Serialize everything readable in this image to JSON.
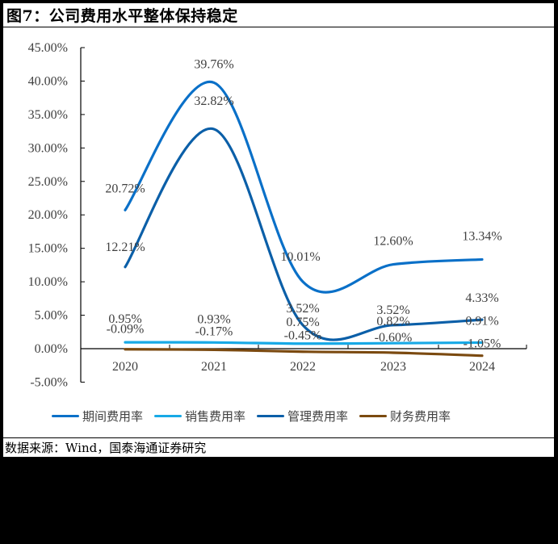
{
  "figure": {
    "title": "图7：公司费用水平整体保持稳定",
    "source": "数据来源：Wind，国泰海通证券研究"
  },
  "legend": [
    {
      "label": "期间费用率",
      "color": "#0A70C8"
    },
    {
      "label": "销售费用率",
      "color": "#17A9E6"
    },
    {
      "label": "管理费用率",
      "color": "#0B5FA8"
    },
    {
      "label": "财务费用率",
      "color": "#7B4A10"
    }
  ],
  "chart_data": {
    "type": "line",
    "title": "公司费用水平整体保持稳定",
    "xlabel": "",
    "ylabel": "",
    "categories": [
      "2020",
      "2021",
      "2022",
      "2023",
      "2024"
    ],
    "y_ticks": [
      "45.00%",
      "40.00%",
      "35.00%",
      "30.00%",
      "25.00%",
      "20.00%",
      "15.00%",
      "10.00%",
      "5.00%",
      "0.00%",
      "-5.00%"
    ],
    "ylim": [
      -5,
      45
    ],
    "grid": false,
    "smooth": true,
    "legend_position": "bottom",
    "series": [
      {
        "name": "期间费用率",
        "color": "#0A70C8",
        "values": [
          20.72,
          39.76,
          10.01,
          12.6,
          13.34
        ],
        "labels": [
          "20.72%",
          "39.76%",
          "10.01%",
          "12.60%",
          "13.34%"
        ]
      },
      {
        "name": "销售费用率",
        "color": "#17A9E6",
        "values": [
          0.95,
          0.93,
          0.75,
          0.82,
          0.91
        ],
        "labels": [
          "0.95%",
          "0.93%",
          "0.75%",
          "0.82%",
          "0.91%"
        ]
      },
      {
        "name": "管理费用率",
        "color": "#0B5FA8",
        "values": [
          12.21,
          32.82,
          3.52,
          3.52,
          4.33
        ],
        "labels": [
          "12.21%",
          "32.82%",
          "3.52%",
          "3.52%",
          "4.33%"
        ]
      },
      {
        "name": "财务费用率",
        "color": "#7B4A10",
        "values": [
          -0.09,
          -0.17,
          -0.45,
          -0.6,
          -1.05
        ],
        "labels": [
          "-0.09%",
          "-0.17%",
          "-0.45%",
          "-0.60%",
          "-1.05%"
        ]
      }
    ]
  }
}
